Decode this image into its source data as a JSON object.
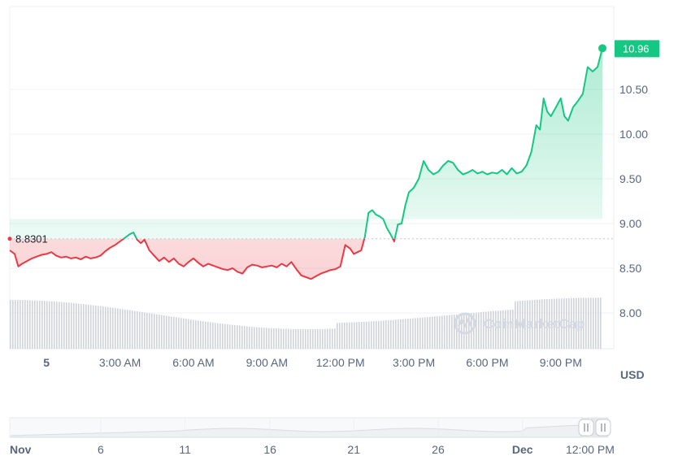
{
  "chart_data": {
    "type": "line",
    "ylabel_unit": "USD",
    "ylim": [
      7.6,
      11.3
    ],
    "baseline": {
      "value": 8.83,
      "label": "8.8301"
    },
    "last_price": {
      "value": 10.96,
      "label": "10.96"
    },
    "y_ticks": [
      {
        "v": 10.5,
        "label": "10.50"
      },
      {
        "v": 10.0,
        "label": "10.00"
      },
      {
        "v": 9.5,
        "label": "9.50"
      },
      {
        "v": 9.0,
        "label": "9.00"
      },
      {
        "v": 8.5,
        "label": "8.50"
      },
      {
        "v": 8.0,
        "label": "8.00"
      }
    ],
    "x_range": [
      -1.5,
      22.7
    ],
    "x_ticks": [
      {
        "h": 0,
        "label": "5",
        "bold": true
      },
      {
        "h": 3,
        "label": "3:00 AM"
      },
      {
        "h": 6,
        "label": "6:00 AM"
      },
      {
        "h": 9,
        "label": "9:00 AM"
      },
      {
        "h": 12,
        "label": "12:00 PM"
      },
      {
        "h": 15,
        "label": "3:00 PM"
      },
      {
        "h": 18,
        "label": "6:00 PM"
      },
      {
        "h": 21,
        "label": "9:00 PM"
      }
    ],
    "colors": {
      "up": "#16c784",
      "down": "#ea3943",
      "axis": "#58667e",
      "volume": "#cfd3dc"
    },
    "series": [
      {
        "x": [
          -1.5,
          -1.3,
          -1.15,
          -1.0,
          -0.8,
          -0.6,
          -0.4,
          -0.2,
          0.0,
          0.2,
          0.4,
          0.6,
          0.8,
          1.0,
          1.2,
          1.4,
          1.6,
          1.8,
          2.0,
          2.2,
          2.4,
          2.6,
          2.8,
          3.0,
          3.2,
          3.4,
          3.55,
          3.7,
          3.85,
          4.0,
          4.2,
          4.4,
          4.6,
          4.8,
          5.0,
          5.2,
          5.4,
          5.6,
          5.8,
          6.0,
          6.2,
          6.4,
          6.6,
          6.8,
          7.0,
          7.2,
          7.4,
          7.6,
          7.8,
          8.0,
          8.2,
          8.4,
          8.6,
          8.8,
          9.0,
          9.2,
          9.4,
          9.6,
          9.8,
          10.0,
          10.2,
          10.4,
          10.6,
          10.8,
          11.0,
          11.2,
          11.4,
          11.6,
          11.8,
          12.0,
          12.2,
          12.4,
          12.55,
          12.7,
          12.85,
          13.0,
          13.15,
          13.3,
          13.45,
          13.6,
          13.75,
          13.9,
          14.05,
          14.2,
          14.35,
          14.5,
          14.65,
          14.8,
          15.0,
          15.2,
          15.4,
          15.6,
          15.8,
          16.0,
          16.2,
          16.4,
          16.6,
          16.8,
          17.0,
          17.2,
          17.4,
          17.6,
          17.8,
          18.0,
          18.2,
          18.4,
          18.6,
          18.8,
          19.0,
          19.2,
          19.4,
          19.6,
          19.8,
          20.0,
          20.15,
          20.3,
          20.45,
          20.6,
          20.8,
          21.0,
          21.15,
          21.3,
          21.5,
          21.7,
          21.9,
          22.1,
          22.3,
          22.5,
          22.7
        ],
        "values": [
          8.7,
          8.66,
          8.52,
          8.55,
          8.58,
          8.61,
          8.63,
          8.65,
          8.66,
          8.68,
          8.64,
          8.62,
          8.63,
          8.61,
          8.62,
          8.6,
          8.63,
          8.61,
          8.62,
          8.64,
          8.69,
          8.73,
          8.76,
          8.8,
          8.84,
          8.88,
          8.9,
          8.82,
          8.78,
          8.82,
          8.7,
          8.64,
          8.58,
          8.62,
          8.57,
          8.61,
          8.55,
          8.52,
          8.57,
          8.61,
          8.56,
          8.52,
          8.55,
          8.53,
          8.51,
          8.49,
          8.48,
          8.5,
          8.46,
          8.44,
          8.51,
          8.54,
          8.53,
          8.51,
          8.52,
          8.53,
          8.51,
          8.55,
          8.52,
          8.57,
          8.49,
          8.42,
          8.4,
          8.38,
          8.41,
          8.44,
          8.46,
          8.48,
          8.49,
          8.52,
          8.76,
          8.72,
          8.66,
          8.68,
          8.7,
          8.85,
          9.12,
          9.15,
          9.1,
          9.08,
          9.05,
          8.95,
          8.88,
          8.8,
          8.99,
          9.0,
          9.2,
          9.35,
          9.4,
          9.5,
          9.7,
          9.6,
          9.55,
          9.58,
          9.65,
          9.7,
          9.68,
          9.6,
          9.55,
          9.57,
          9.6,
          9.56,
          9.58,
          9.55,
          9.57,
          9.56,
          9.6,
          9.55,
          9.62,
          9.56,
          9.58,
          9.65,
          9.8,
          10.1,
          10.05,
          10.4,
          10.25,
          10.2,
          10.3,
          10.4,
          10.2,
          10.15,
          10.3,
          10.37,
          10.45,
          10.75,
          10.7,
          10.75,
          10.96
        ]
      }
    ],
    "navigator_ticks": [
      {
        "f": 0.0,
        "label": "Nov",
        "bold": true
      },
      {
        "f": 0.152,
        "label": "6"
      },
      {
        "f": 0.293,
        "label": "11"
      },
      {
        "f": 0.435,
        "label": "16"
      },
      {
        "f": 0.575,
        "label": "21"
      },
      {
        "f": 0.716,
        "label": "26"
      },
      {
        "f": 0.857,
        "label": "Dec",
        "bold": true
      },
      {
        "f": 0.97,
        "label": "12:00 PM"
      }
    ]
  },
  "watermark": {
    "text": "CoinMarketCap",
    "icon": "coinmarketcap-logo-icon"
  },
  "navigator": {
    "left_handle_icon": "pause-handle-icon",
    "right_handle_icon": "pause-handle-icon"
  }
}
